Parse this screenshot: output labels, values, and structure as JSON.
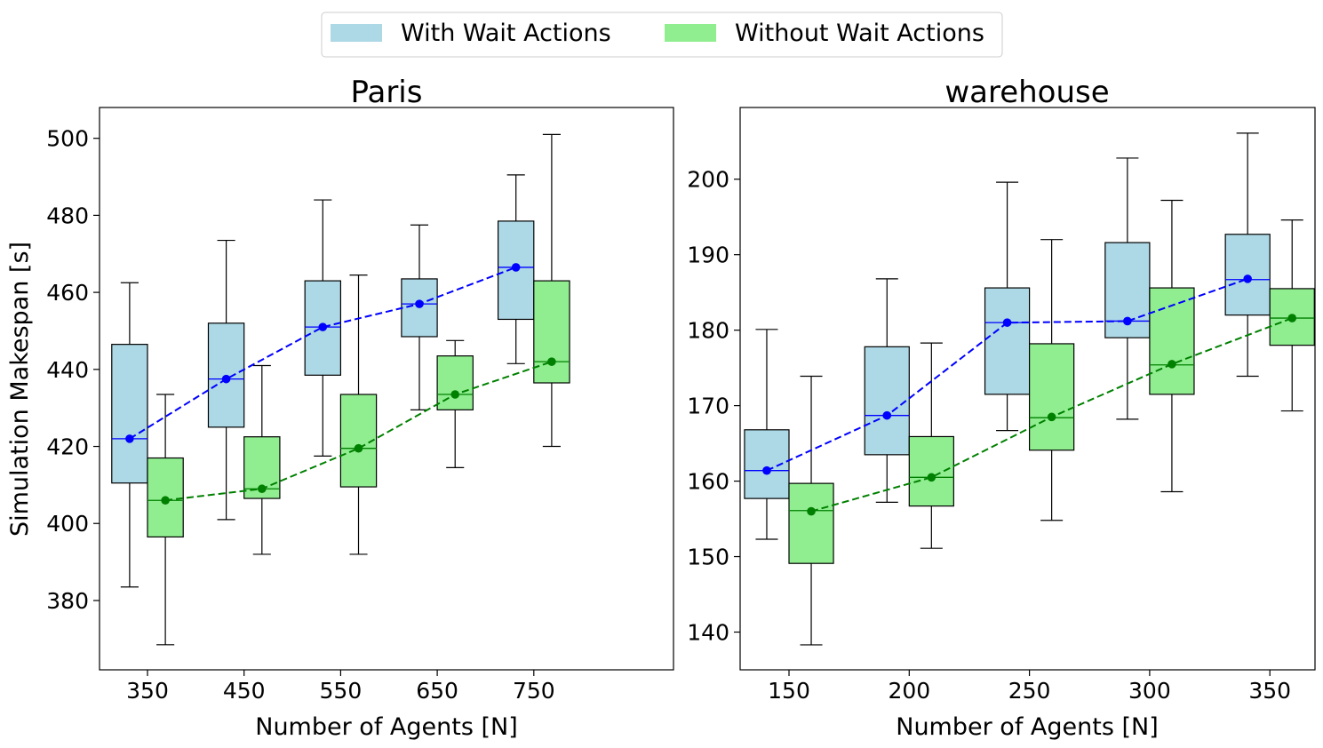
{
  "legend": {
    "position": "top-center",
    "entries": [
      {
        "label": "With Wait Actions",
        "color": "#add8e6"
      },
      {
        "label": "Without Wait Actions",
        "color": "#90ee90"
      }
    ]
  },
  "ylabel": "Simulation Makespan [s]",
  "colors": {
    "with_box": "#add8e6",
    "without_box": "#90ee90",
    "with_line": "#0000ff",
    "without_line": "#008000",
    "box_edge": "#000000"
  },
  "chart_data": [
    {
      "type": "box",
      "title": "Paris",
      "xlabel": "Number of Agents [N]",
      "ylabel": "Simulation Makespan [s]",
      "categories": [
        "350",
        "450",
        "550",
        "650",
        "750"
      ],
      "ylim": [
        362,
        508
      ],
      "yticks": [
        380,
        400,
        420,
        440,
        460,
        480,
        500
      ],
      "series": [
        {
          "name": "With Wait Actions",
          "whisker_low": [
            383.5,
            401,
            417.5,
            429.5,
            441.5
          ],
          "q1": [
            410.5,
            425,
            438.5,
            448.5,
            453
          ],
          "median": [
            422,
            437.5,
            451,
            457,
            466.5
          ],
          "q3": [
            446.5,
            452,
            463,
            463.5,
            478.5
          ],
          "whisker_high": [
            462.5,
            473.5,
            484,
            477.5,
            490.5
          ],
          "mean": [
            422,
            437.5,
            451,
            457,
            466.5
          ]
        },
        {
          "name": "Without Wait Actions",
          "whisker_low": [
            368.5,
            392,
            392,
            414.5,
            420
          ],
          "q1": [
            396.5,
            406.5,
            409.5,
            429.5,
            436.5
          ],
          "median": [
            406,
            409,
            419.5,
            433.5,
            442
          ],
          "q3": [
            417,
            422.5,
            433.5,
            443.5,
            463
          ],
          "whisker_high": [
            433.5,
            441,
            464.5,
            447.5,
            501
          ],
          "mean": [
            406,
            409,
            419.5,
            433.5,
            442
          ]
        }
      ]
    },
    {
      "type": "box",
      "title": "warehouse",
      "xlabel": "Number of Agents [N]",
      "ylabel": "",
      "categories": [
        "150",
        "200",
        "250",
        "300",
        "350"
      ],
      "ylim": [
        135,
        209.5
      ],
      "yticks": [
        140,
        150,
        160,
        170,
        180,
        190,
        200
      ],
      "series": [
        {
          "name": "With Wait Actions",
          "whisker_low": [
            152.3,
            157.2,
            166.7,
            168.2,
            173.9
          ],
          "q1": [
            157.7,
            163.5,
            171.5,
            179,
            182
          ],
          "median": [
            161.4,
            168.7,
            181,
            181.2,
            186.7
          ],
          "q3": [
            166.8,
            177.8,
            185.6,
            191.6,
            192.7
          ],
          "whisker_high": [
            180.1,
            186.8,
            199.6,
            202.8,
            206.1
          ],
          "mean": [
            161.4,
            168.7,
            181,
            181.2,
            186.8
          ]
        },
        {
          "name": "Without Wait Actions",
          "whisker_low": [
            138.3,
            151.1,
            154.8,
            158.6,
            169.3
          ],
          "q1": [
            149.1,
            156.7,
            164.1,
            171.5,
            178
          ],
          "median": [
            156.1,
            160.5,
            168.4,
            175.4,
            181.6
          ],
          "q3": [
            159.7,
            165.9,
            178.2,
            185.6,
            185.5
          ],
          "whisker_high": [
            173.9,
            178.3,
            192,
            197.2,
            194.6
          ],
          "mean": [
            156,
            160.5,
            168.5,
            175.5,
            181.6
          ]
        }
      ]
    }
  ]
}
